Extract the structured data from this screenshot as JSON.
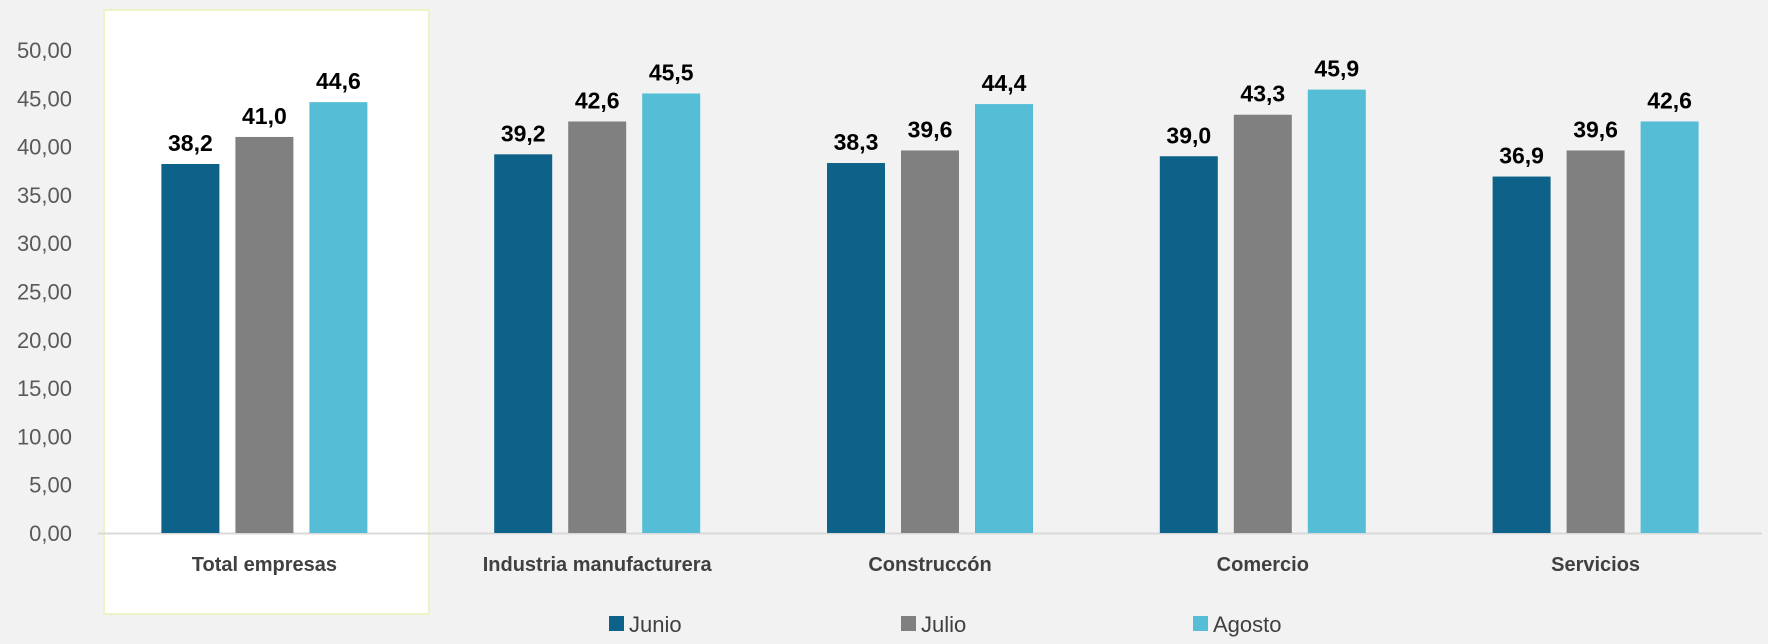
{
  "chart_data": {
    "type": "bar",
    "title": "",
    "xlabel": "",
    "ylabel": "",
    "ylim": [
      0,
      50
    ],
    "yticks": [
      "0,00",
      "5,00",
      "10,00",
      "15,00",
      "20,00",
      "25,00",
      "30,00",
      "35,00",
      "40,00",
      "45,00",
      "50,00"
    ],
    "categories": [
      "Total empresas",
      "Industria manufacturera",
      "Construccón",
      "Comercio",
      "Servicios"
    ],
    "highlighted_category": "Total empresas",
    "series": [
      {
        "name": "Junio",
        "color": "#0e6188",
        "values": [
          38.2,
          39.2,
          38.3,
          39.0,
          36.9
        ],
        "labels": [
          "38,2",
          "39,2",
          "38,3",
          "39,0",
          "36,9"
        ]
      },
      {
        "name": "Julio",
        "color": "#808080",
        "values": [
          41.0,
          42.6,
          39.6,
          43.3,
          39.6
        ],
        "labels": [
          "41,0",
          "42,6",
          "39,6",
          "43,3",
          "39,6"
        ]
      },
      {
        "name": "Agosto",
        "color": "#55bdd5",
        "values": [
          44.6,
          45.5,
          44.4,
          45.9,
          42.6
        ],
        "labels": [
          "44,6",
          "45,5",
          "44,4",
          "45,9",
          "42,6"
        ]
      }
    ],
    "grid": false,
    "legend": "bottom-center"
  }
}
